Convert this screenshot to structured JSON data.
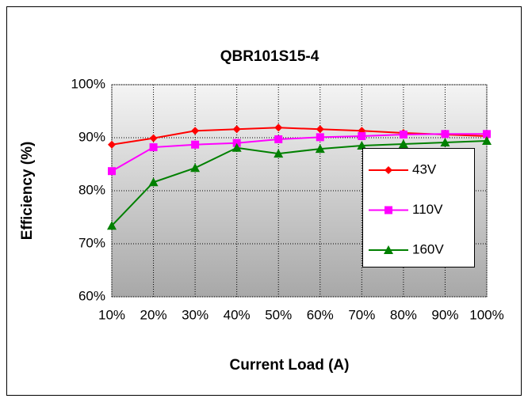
{
  "chart_data": {
    "type": "line",
    "title": "QBR101S15-4",
    "x_label": "Current Load (A)",
    "y_label": "Efficiency (%)",
    "categories": [
      "10%",
      "20%",
      "30%",
      "40%",
      "50%",
      "60%",
      "70%",
      "80%",
      "90%",
      "100%"
    ],
    "series": [
      {
        "name": "43V",
        "color": "#ff0000",
        "marker": "diamond",
        "values": [
          88.7,
          89.9,
          91.3,
          91.6,
          91.9,
          91.6,
          91.3,
          90.9,
          90.6,
          90.3
        ]
      },
      {
        "name": "110V",
        "color": "#ff00ff",
        "marker": "square",
        "values": [
          83.7,
          88.2,
          88.7,
          89.0,
          89.7,
          90.1,
          90.3,
          90.6,
          90.7,
          90.7
        ]
      },
      {
        "name": "160V",
        "color": "#008000",
        "marker": "triangle",
        "values": [
          73.4,
          81.6,
          84.3,
          88.1,
          87.0,
          87.9,
          88.5,
          88.8,
          89.1,
          89.4
        ]
      }
    ],
    "ylim": [
      60,
      100
    ],
    "yticks": [
      {
        "value": 60,
        "label": "60%"
      },
      {
        "value": 70,
        "label": "70%"
      },
      {
        "value": 80,
        "label": "80%"
      },
      {
        "value": 90,
        "label": "90%"
      },
      {
        "value": 100,
        "label": "100%"
      }
    ],
    "grid": true
  }
}
